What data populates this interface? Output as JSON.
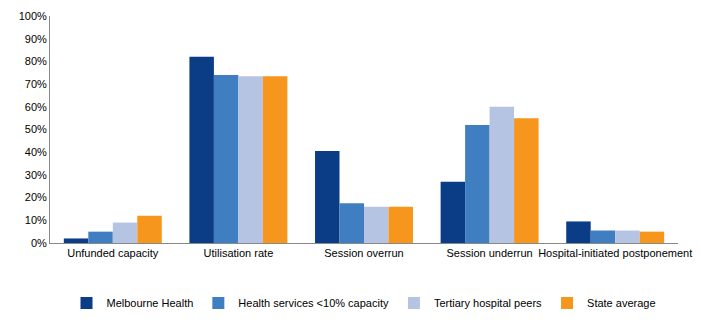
{
  "chart_data": {
    "type": "bar",
    "categories": [
      "Unfunded capacity",
      "Utilisation rate",
      "Session overrun",
      "Session underrun",
      "Hospital-initiated postponement"
    ],
    "series": [
      {
        "name": "Melbourne Health",
        "color": "#0b3d86",
        "values": [
          2,
          82,
          40.5,
          27,
          9.5
        ]
      },
      {
        "name": "Health services <10% capacity",
        "color": "#3f7fc1",
        "values": [
          5,
          74,
          17.5,
          52,
          5.5
        ]
      },
      {
        "name": "Tertiary hospital peers",
        "color": "#b6c4e4",
        "values": [
          9,
          73.5,
          16,
          60,
          5.5
        ]
      },
      {
        "name": "State average",
        "color": "#f7961d",
        "values": [
          12,
          73.5,
          16,
          55,
          5
        ]
      }
    ],
    "ylim": [
      0,
      100
    ],
    "yticks": [
      {
        "value": 0,
        "label": "0%"
      },
      {
        "value": 10,
        "label": "10%"
      },
      {
        "value": 20,
        "label": "20%"
      },
      {
        "value": 30,
        "label": "30%"
      },
      {
        "value": 40,
        "label": "40%"
      },
      {
        "value": 50,
        "label": "50%"
      },
      {
        "value": 60,
        "label": "60%"
      },
      {
        "value": 70,
        "label": "70%"
      },
      {
        "value": 80,
        "label": "80%"
      },
      {
        "value": 90,
        "label": "90%"
      },
      {
        "value": 100,
        "label": "100%"
      }
    ],
    "grid": false,
    "legend": "bottom"
  }
}
